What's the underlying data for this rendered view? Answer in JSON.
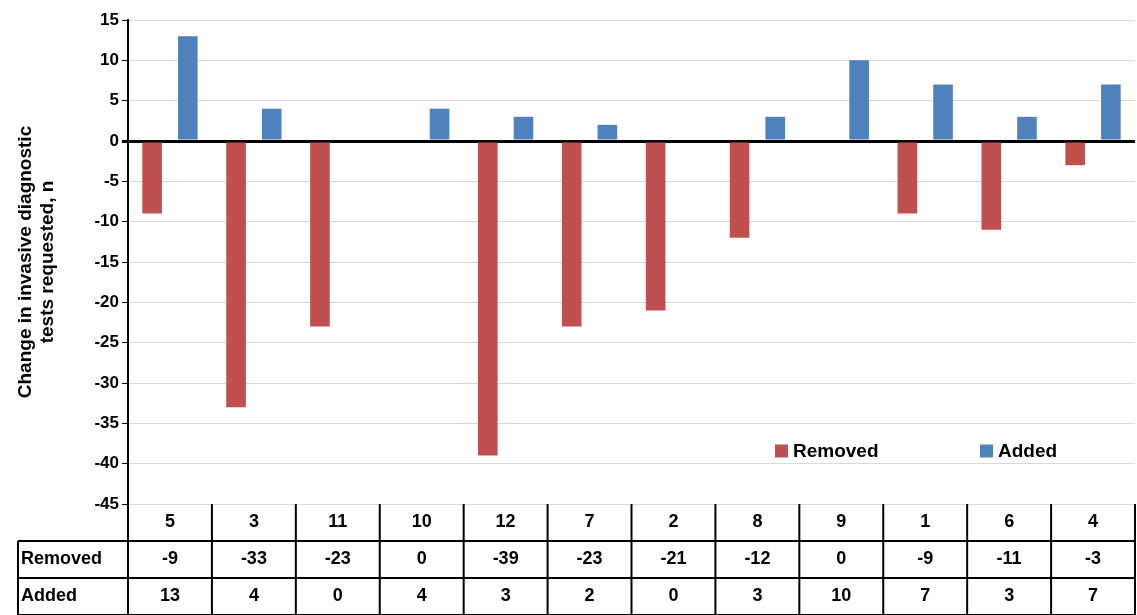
{
  "chart_data": {
    "type": "bar",
    "ylabel": "Change in invasive diagnostic tests requested, n",
    "categories": [
      "5",
      "3",
      "11",
      "10",
      "12",
      "7",
      "2",
      "8",
      "9",
      "1",
      "6",
      "4"
    ],
    "series": [
      {
        "name": "Removed",
        "color": "#c0504d",
        "values": [
          -9,
          -33,
          -23,
          0,
          -39,
          -23,
          -21,
          -12,
          0,
          -9,
          -11,
          -3
        ]
      },
      {
        "name": "Added",
        "color": "#4f81bd",
        "values": [
          13,
          4,
          0,
          4,
          3,
          2,
          0,
          3,
          10,
          7,
          3,
          7
        ]
      }
    ],
    "ylim": [
      -45,
      15
    ],
    "yticks": [
      -45,
      -40,
      -35,
      -30,
      -25,
      -20,
      -15,
      -10,
      -5,
      0,
      5,
      10,
      15
    ],
    "grid": "y",
    "legend": "bottom right",
    "data_labels": true
  }
}
